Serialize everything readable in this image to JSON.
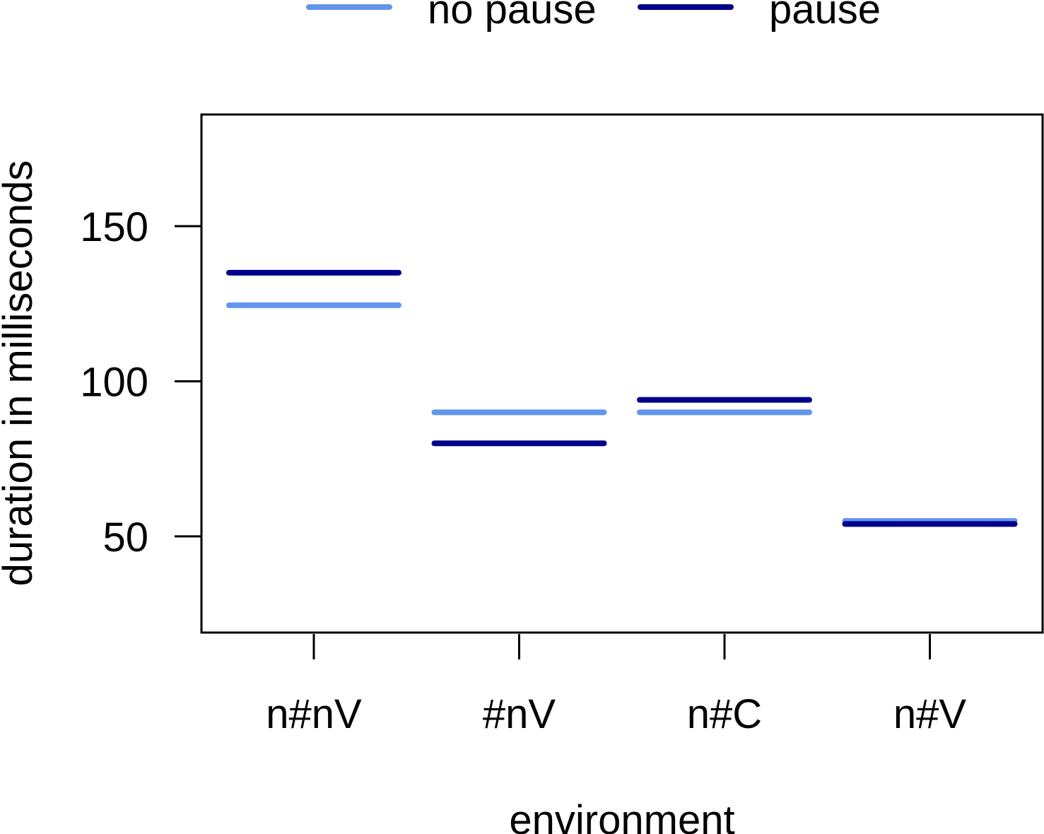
{
  "chart_data": {
    "type": "line",
    "xlabel": "environment",
    "ylabel": "duration in milliseconds",
    "categories": [
      "n#nV",
      "#nV",
      "n#C",
      "n#V"
    ],
    "ylim": [
      19,
      186
    ],
    "yticks": [
      50,
      100,
      150
    ],
    "grid": false,
    "legend": {
      "placement": "top"
    },
    "series": [
      {
        "name": "no pause",
        "color": "#6495ED",
        "values": [
          124.5,
          90,
          90,
          55
        ]
      },
      {
        "name": "pause",
        "color": "#00008B",
        "values": [
          135,
          80,
          94,
          54
        ]
      }
    ]
  }
}
